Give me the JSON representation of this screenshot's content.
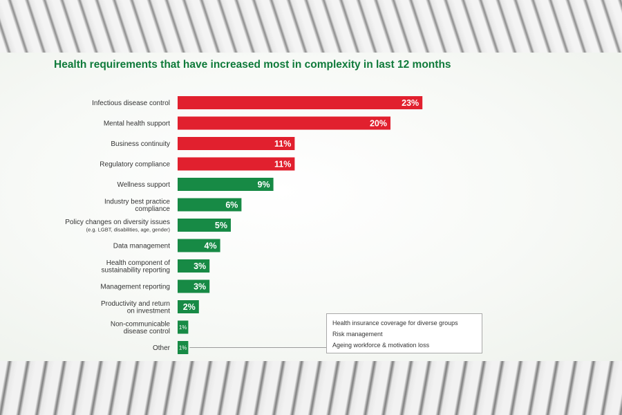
{
  "chart_data": {
    "type": "bar",
    "orientation": "horizontal",
    "title": "Health requirements that have increased most in complexity in last 12 months",
    "categories": [
      [
        "Infectious disease control"
      ],
      [
        "Mental health support"
      ],
      [
        "Business continuity"
      ],
      [
        "Regulatory compliance"
      ],
      [
        "Wellness support"
      ],
      [
        "Industry best practice",
        "compliance"
      ],
      [
        "Policy changes on diversity issues",
        "(e.g. LGBT, disabilities, age, gender)"
      ],
      [
        "Data management"
      ],
      [
        "Health component of",
        "sustainability reporting"
      ],
      [
        "Management reporting"
      ],
      [
        "Productivity and return",
        "on investment"
      ],
      [
        "Non-communicable",
        "disease control"
      ],
      [
        "Other"
      ]
    ],
    "values": [
      23,
      20,
      11,
      11,
      9,
      6,
      5,
      4,
      3,
      3,
      2,
      1,
      1
    ],
    "value_labels": [
      "23%",
      "20%",
      "11%",
      "11%",
      "9%",
      "6%",
      "5%",
      "4%",
      "3%",
      "3%",
      "2%",
      "1%",
      "1%"
    ],
    "colors": [
      "#e1202e",
      "#e1202e",
      "#e1202e",
      "#e1202e",
      "#178a45",
      "#178a45",
      "#178a45",
      "#178a45",
      "#178a45",
      "#178a45",
      "#178a45",
      "#178a45",
      "#178a45"
    ],
    "other_breakdown": [
      "Health insurance coverage for diverse groups",
      "Risk management",
      "Ageing workforce & motivation loss"
    ]
  }
}
